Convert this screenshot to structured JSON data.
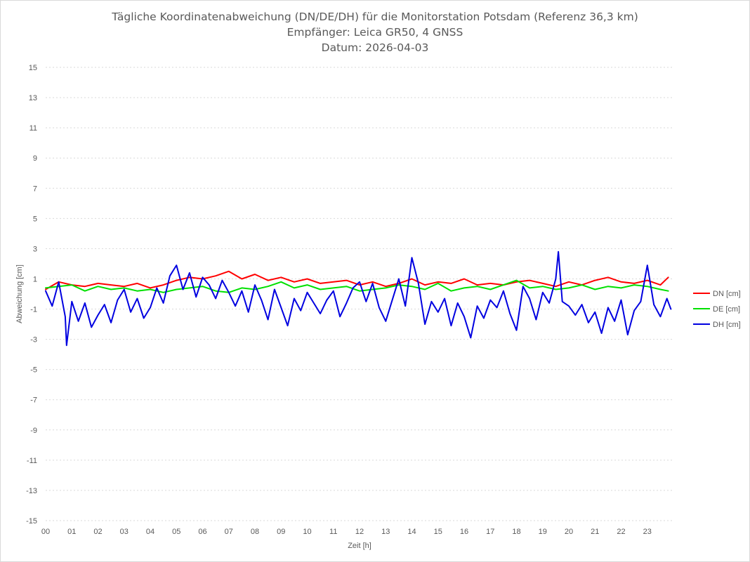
{
  "chart_data": {
    "type": "line",
    "title_lines": [
      "Tägliche Koordinatenabweichung (DN/DE/DH) für die Monitorstation Potsdam (Referenz 36,3 km)",
      "Empfänger: Leica GR50, 4 GNSS",
      "Datum: 2026-04-03"
    ],
    "xlabel": "Zeit [h]",
    "ylabel": "Abweichung [cm]",
    "xlim": [
      0,
      24
    ],
    "ylim": [
      -15,
      15
    ],
    "x_ticks": [
      "00",
      "01",
      "02",
      "03",
      "04",
      "05",
      "06",
      "07",
      "08",
      "09",
      "10",
      "11",
      "12",
      "13",
      "14",
      "15",
      "16",
      "17",
      "18",
      "19",
      "20",
      "21",
      "22",
      "23"
    ],
    "y_ticks": [
      15,
      13,
      11,
      9,
      7,
      5,
      3,
      1,
      -1,
      -3,
      -5,
      -7,
      -9,
      -11,
      -13,
      -15
    ],
    "grid": "horizontal dashed",
    "legend_position": "right",
    "series": [
      {
        "name": "DN [cm]",
        "color": "#ff0000",
        "x": [
          0,
          0.5,
          1,
          1.5,
          2,
          2.5,
          3,
          3.5,
          4,
          4.5,
          5,
          5.5,
          6,
          6.5,
          7,
          7.5,
          8,
          8.5,
          9,
          9.5,
          10,
          10.5,
          11,
          11.5,
          12,
          12.5,
          13,
          13.5,
          14,
          14.5,
          15,
          15.5,
          16,
          16.5,
          17,
          17.5,
          18,
          18.5,
          19,
          19.5,
          20,
          20.5,
          21,
          21.5,
          22,
          22.5,
          23,
          23.5,
          23.8
        ],
        "values": [
          0.3,
          0.8,
          0.6,
          0.5,
          0.7,
          0.6,
          0.5,
          0.7,
          0.4,
          0.6,
          0.9,
          1.1,
          1.0,
          1.2,
          1.5,
          1.0,
          1.3,
          0.9,
          1.1,
          0.8,
          1.0,
          0.7,
          0.8,
          0.9,
          0.6,
          0.8,
          0.5,
          0.7,
          1.0,
          0.6,
          0.8,
          0.7,
          1.0,
          0.6,
          0.7,
          0.6,
          0.8,
          0.9,
          0.7,
          0.5,
          0.8,
          0.6,
          0.9,
          1.1,
          0.8,
          0.7,
          0.9,
          0.6,
          1.1
        ]
      },
      {
        "name": "DE [cm]",
        "color": "#00e000",
        "x": [
          0,
          0.5,
          1,
          1.5,
          2,
          2.5,
          3,
          3.5,
          4,
          4.5,
          5,
          5.5,
          6,
          6.5,
          7,
          7.5,
          8,
          8.5,
          9,
          9.5,
          10,
          10.5,
          11,
          11.5,
          12,
          12.5,
          13,
          13.5,
          14,
          14.5,
          15,
          15.5,
          16,
          16.5,
          17,
          17.5,
          18,
          18.5,
          19,
          19.5,
          20,
          20.5,
          21,
          21.5,
          22,
          22.5,
          23,
          23.5,
          23.8
        ],
        "values": [
          0.4,
          0.5,
          0.6,
          0.2,
          0.5,
          0.3,
          0.4,
          0.2,
          0.3,
          0.1,
          0.3,
          0.4,
          0.5,
          0.2,
          0.1,
          0.4,
          0.3,
          0.5,
          0.8,
          0.4,
          0.6,
          0.3,
          0.4,
          0.5,
          0.2,
          0.3,
          0.4,
          0.6,
          0.5,
          0.3,
          0.7,
          0.2,
          0.4,
          0.5,
          0.3,
          0.6,
          0.9,
          0.4,
          0.5,
          0.3,
          0.4,
          0.6,
          0.3,
          0.5,
          0.4,
          0.6,
          0.5,
          0.3,
          0.2
        ]
      },
      {
        "name": "DH [cm]",
        "color": "#0000e0",
        "x": [
          0,
          0.25,
          0.5,
          0.75,
          0.8,
          1,
          1.25,
          1.5,
          1.75,
          2,
          2.25,
          2.5,
          2.75,
          3,
          3.25,
          3.5,
          3.75,
          4,
          4.25,
          4.5,
          4.75,
          5,
          5.25,
          5.5,
          5.75,
          6,
          6.25,
          6.5,
          6.75,
          7,
          7.25,
          7.5,
          7.75,
          8,
          8.25,
          8.5,
          8.75,
          9,
          9.25,
          9.5,
          9.75,
          10,
          10.25,
          10.5,
          10.75,
          11,
          11.25,
          11.5,
          11.75,
          12,
          12.25,
          12.5,
          12.75,
          13,
          13.25,
          13.5,
          13.75,
          14,
          14.25,
          14.5,
          14.75,
          15,
          15.25,
          15.5,
          15.75,
          16,
          16.25,
          16.5,
          16.75,
          17,
          17.25,
          17.5,
          17.75,
          18,
          18.25,
          18.5,
          18.75,
          19,
          19.25,
          19.5,
          19.6,
          19.75,
          20,
          20.25,
          20.5,
          20.75,
          21,
          21.25,
          21.5,
          21.75,
          22,
          22.25,
          22.5,
          22.75,
          23,
          23.25,
          23.5,
          23.75,
          23.9
        ],
        "values": [
          0.2,
          -0.8,
          0.8,
          -1.5,
          -3.4,
          -0.5,
          -1.8,
          -0.6,
          -2.2,
          -1.4,
          -0.7,
          -1.9,
          -0.4,
          0.3,
          -1.2,
          -0.3,
          -1.6,
          -0.9,
          0.4,
          -0.6,
          1.2,
          1.9,
          0.3,
          1.4,
          -0.2,
          1.1,
          0.6,
          -0.3,
          0.9,
          0.1,
          -0.8,
          0.2,
          -1.2,
          0.6,
          -0.4,
          -1.7,
          0.3,
          -0.9,
          -2.1,
          -0.3,
          -1.1,
          0.1,
          -0.6,
          -1.3,
          -0.4,
          0.2,
          -1.5,
          -0.6,
          0.4,
          0.8,
          -0.5,
          0.7,
          -0.9,
          -1.8,
          -0.4,
          1.0,
          -0.8,
          2.4,
          0.7,
          -2.0,
          -0.5,
          -1.2,
          -0.3,
          -2.1,
          -0.6,
          -1.5,
          -2.9,
          -0.8,
          -1.6,
          -0.4,
          -0.9,
          0.2,
          -1.3,
          -2.4,
          0.5,
          -0.3,
          -1.7,
          0.1,
          -0.6,
          1.0,
          2.8,
          -0.5,
          -0.8,
          -1.4,
          -0.7,
          -1.9,
          -1.2,
          -2.6,
          -0.9,
          -1.8,
          -0.4,
          -2.7,
          -1.1,
          -0.5,
          1.9,
          -0.7,
          -1.5,
          -0.3,
          -1.0
        ]
      }
    ]
  }
}
